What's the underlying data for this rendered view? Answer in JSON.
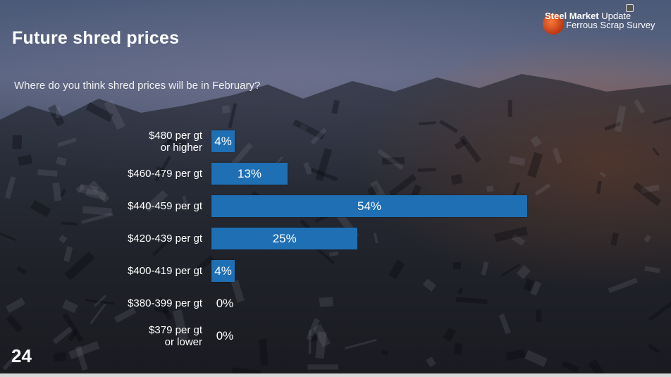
{
  "header": {
    "title": "Future shred prices",
    "subtitle": "Where do you think shred prices will be in February?",
    "page_number": "24"
  },
  "logo": {
    "line1_bold": "Steel Market",
    "line1_light": "Update",
    "line2": "Ferrous Scrap Survey"
  },
  "colors": {
    "bar": "#1f6fb4",
    "text": "#ffffff"
  },
  "chart_data": {
    "type": "bar",
    "orientation": "horizontal",
    "categories": [
      "$480 per gt\nor higher",
      "$460-479 per gt",
      "$440-459 per gt",
      "$420-439 per gt",
      "$400-419 per gt",
      "$380-399 per gt",
      "$379 per gt\nor lower"
    ],
    "values": [
      4,
      13,
      54,
      25,
      4,
      0,
      0
    ],
    "value_labels": [
      "4%",
      "13%",
      "54%",
      "25%",
      "4%",
      "0%",
      "0%"
    ],
    "unit": "%",
    "xlim": [
      0,
      54
    ],
    "grid": false,
    "legend": "none"
  }
}
